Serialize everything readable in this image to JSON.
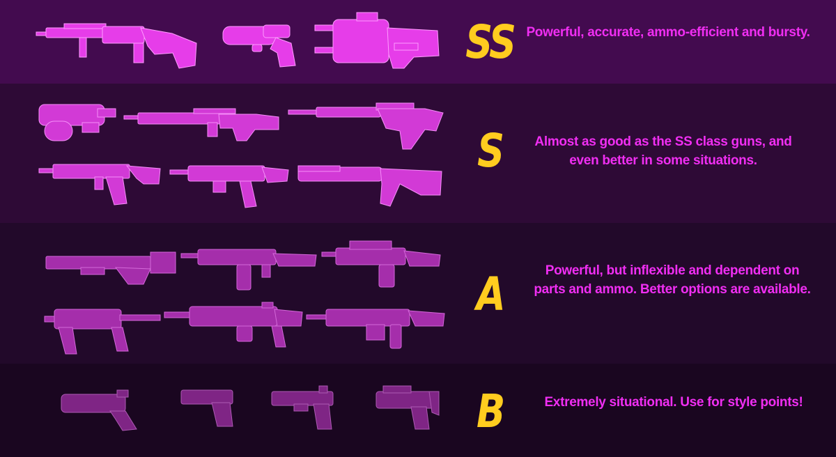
{
  "tiers": [
    {
      "grade": "SS",
      "description": "Powerful, accurate, ammo-efficient and bursty.",
      "weapon_icons": [
        "sniper-rifle-icon",
        "revolver-icon",
        "energy-heavy-gun-icon"
      ]
    },
    {
      "grade": "S",
      "description": "Almost as good as the SS class guns, and even better in some situations.",
      "weapon_icons": [
        "bullpup-smg-icon",
        "marksman-rifle-icon",
        "long-sniper-icon",
        "assault-rifle-icon",
        "heavy-rifle-icon",
        "pump-shotgun-icon"
      ]
    },
    {
      "grade": "A",
      "description": "Powerful, but inflexible and dependent on parts and ammo. Better options are available.",
      "weapon_icons": [
        "energy-rifle-icon",
        "battle-rifle-icon",
        "carbine-icon",
        "smg-icon",
        "light-machine-gun-icon",
        "heavy-machine-gun-icon"
      ]
    },
    {
      "grade": "B",
      "description": "Extremely situational. Use for style points!",
      "weapon_icons": [
        "energy-pistol-icon",
        "pistol-icon",
        "auto-pistol-icon",
        "machine-pistol-icon"
      ]
    }
  ],
  "colors": {
    "grade": "#ffcc1f",
    "description": "#f02ef2",
    "row_backgrounds": [
      "#430b4f",
      "#2e0a36",
      "#22092a",
      "#1a0620"
    ],
    "weapon_fills": [
      "#e63de9",
      "#c837cc",
      "#a52eab",
      "#7f2585"
    ]
  }
}
